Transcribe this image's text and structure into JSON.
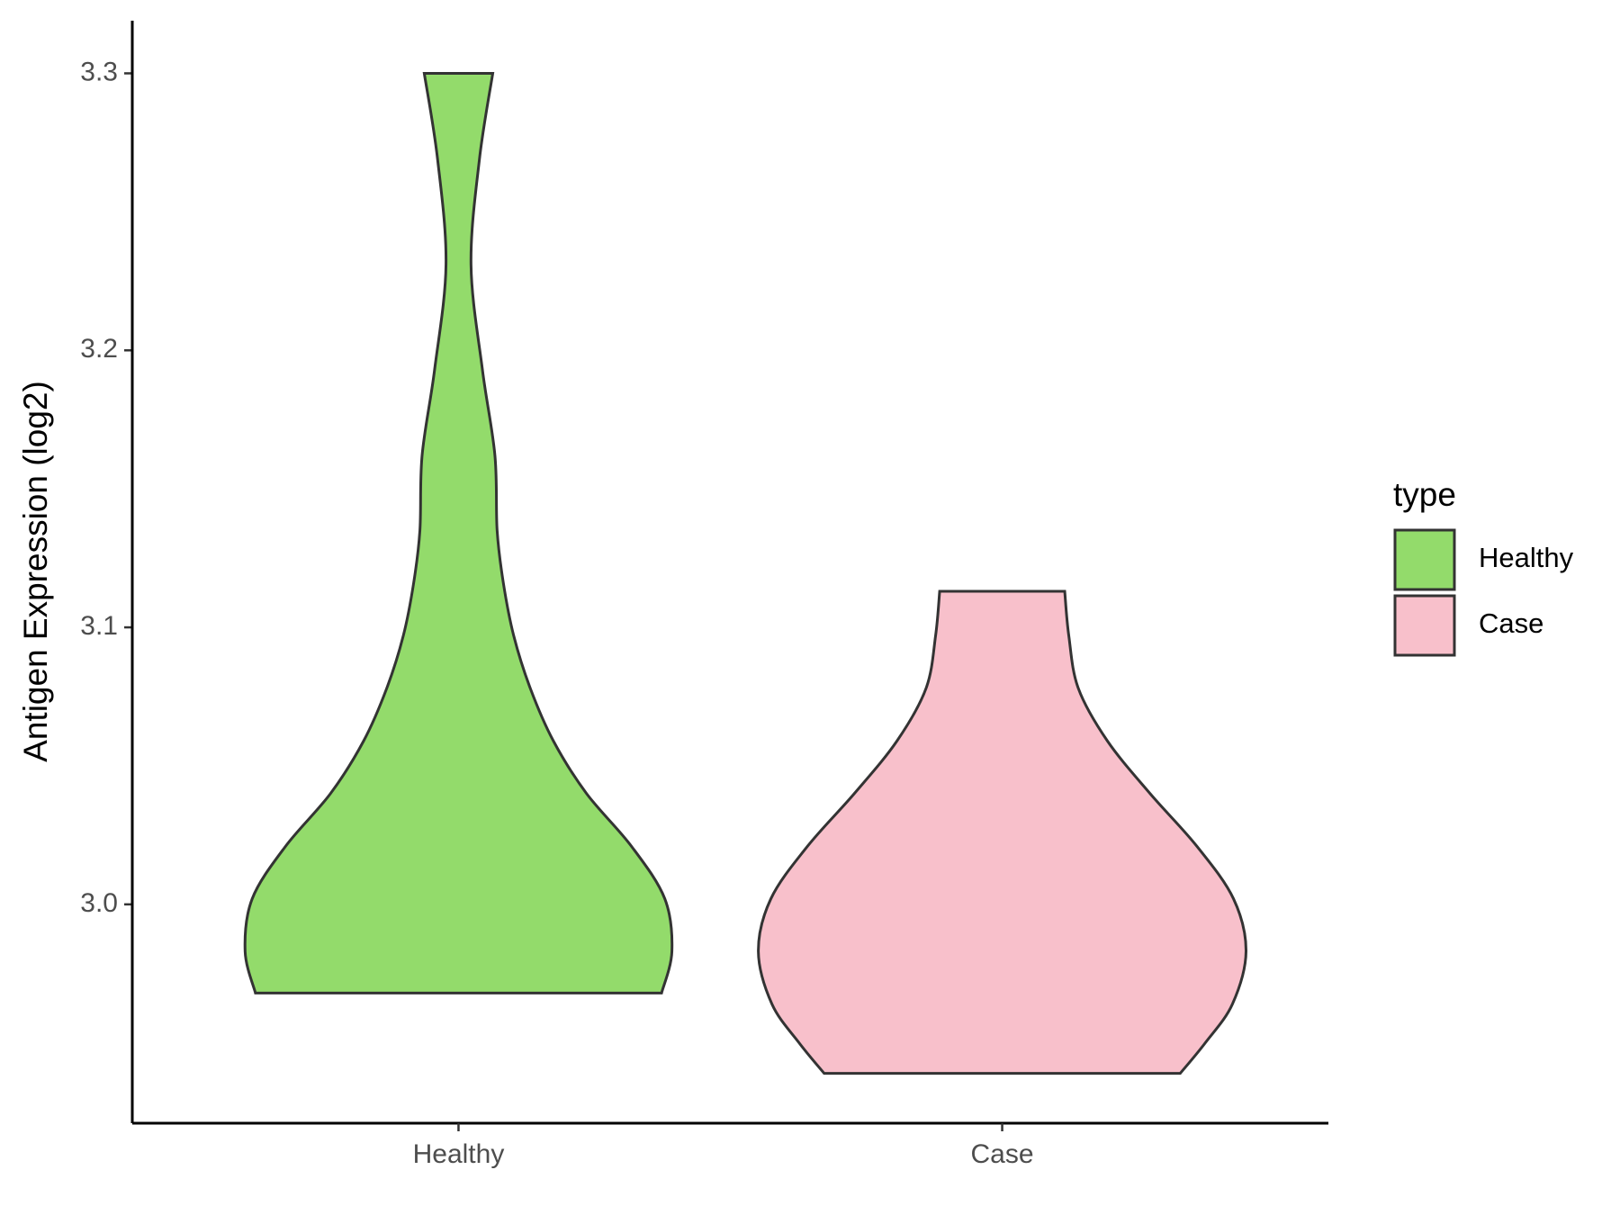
{
  "chart_data": {
    "type": "violin",
    "y_label": "Antigen Expression (log2)",
    "categories": [
      "Healthy",
      "Case"
    ],
    "series": [
      {
        "name": "Healthy",
        "color": "#93DB6B",
        "y": [
          3.3,
          3.269,
          3.231,
          3.193,
          3.162,
          3.135,
          3.116,
          3.097,
          3.078,
          3.059,
          3.04,
          3.021,
          3.002,
          2.983,
          2.968
        ],
        "widths": [
          0.126,
          0.077,
          0.046,
          0.088,
          0.134,
          0.142,
          0.165,
          0.203,
          0.264,
          0.349,
          0.471,
          0.636,
          0.759,
          0.785,
          0.747
        ]
      },
      {
        "name": "Case",
        "color": "#F8C0CB",
        "y": [
          3.113,
          3.097,
          3.078,
          3.059,
          3.04,
          3.021,
          3.002,
          2.983,
          2.964,
          2.95,
          2.939
        ],
        "widths": [
          0.23,
          0.245,
          0.28,
          0.387,
          0.544,
          0.716,
          0.851,
          0.897,
          0.847,
          0.747,
          0.655
        ]
      }
    ],
    "ylim": [
      2.921,
      3.319
    ],
    "yticks": [
      {
        "value": 3.0,
        "label": "3.0"
      },
      3.1,
      3.2,
      3.3
    ],
    "legend_title": "type",
    "legend": "right"
  }
}
